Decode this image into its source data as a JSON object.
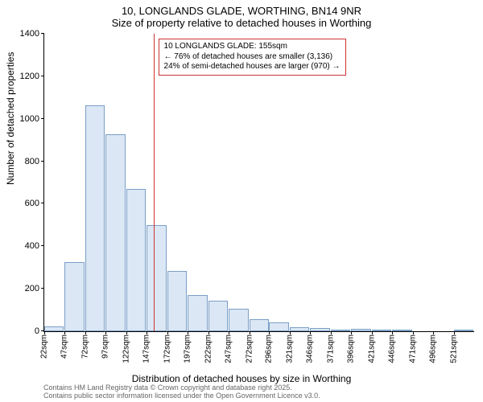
{
  "title_main": "10, LONGLANDS GLADE, WORTHING, BN14 9NR",
  "title_sub": "Size of property relative to detached houses in Worthing",
  "ylabel": "Number of detached properties",
  "xlabel": "Distribution of detached houses by size in Worthing",
  "footer_line1": "Contains HM Land Registry data © Crown copyright and database right 2025.",
  "footer_line2": "Contains public sector information licensed under the Open Government Licence v3.0.",
  "chart": {
    "type": "histogram",
    "background_color": "#ffffff",
    "bar_fill": "#dbe7f4",
    "bar_stroke": "#7a9fc7",
    "marker_line_color": "#cc3333",
    "marker_x": 155,
    "annotation_border_color": "#cc3333",
    "annotation_bg": "#ffffff",
    "ylim": [
      0,
      1400
    ],
    "ytick_step": 200,
    "yticks": [
      0,
      200,
      400,
      600,
      800,
      1000,
      1200,
      1400
    ],
    "xticks": [
      22,
      47,
      72,
      97,
      122,
      147,
      172,
      197,
      222,
      247,
      272,
      296,
      321,
      346,
      371,
      396,
      421,
      446,
      471,
      496,
      521
    ],
    "xtick_unit": "sqm",
    "bin_width": 25,
    "bars": [
      {
        "x": 22,
        "y": 24
      },
      {
        "x": 47,
        "y": 325
      },
      {
        "x": 72,
        "y": 1062
      },
      {
        "x": 97,
        "y": 926
      },
      {
        "x": 122,
        "y": 670
      },
      {
        "x": 147,
        "y": 498
      },
      {
        "x": 172,
        "y": 284
      },
      {
        "x": 197,
        "y": 170
      },
      {
        "x": 222,
        "y": 145
      },
      {
        "x": 247,
        "y": 105
      },
      {
        "x": 272,
        "y": 55
      },
      {
        "x": 296,
        "y": 40
      },
      {
        "x": 321,
        "y": 18
      },
      {
        "x": 346,
        "y": 14
      },
      {
        "x": 371,
        "y": 6
      },
      {
        "x": 396,
        "y": 12
      },
      {
        "x": 421,
        "y": 2
      },
      {
        "x": 446,
        "y": 2
      },
      {
        "x": 471,
        "y": 0
      },
      {
        "x": 496,
        "y": 0
      },
      {
        "x": 521,
        "y": 1
      }
    ],
    "annotation": {
      "line1": "10 LONGLANDS GLADE: 155sqm",
      "line2": "← 76% of detached houses are smaller (3,136)",
      "line3": "24% of semi-detached houses are larger (970) →"
    }
  }
}
